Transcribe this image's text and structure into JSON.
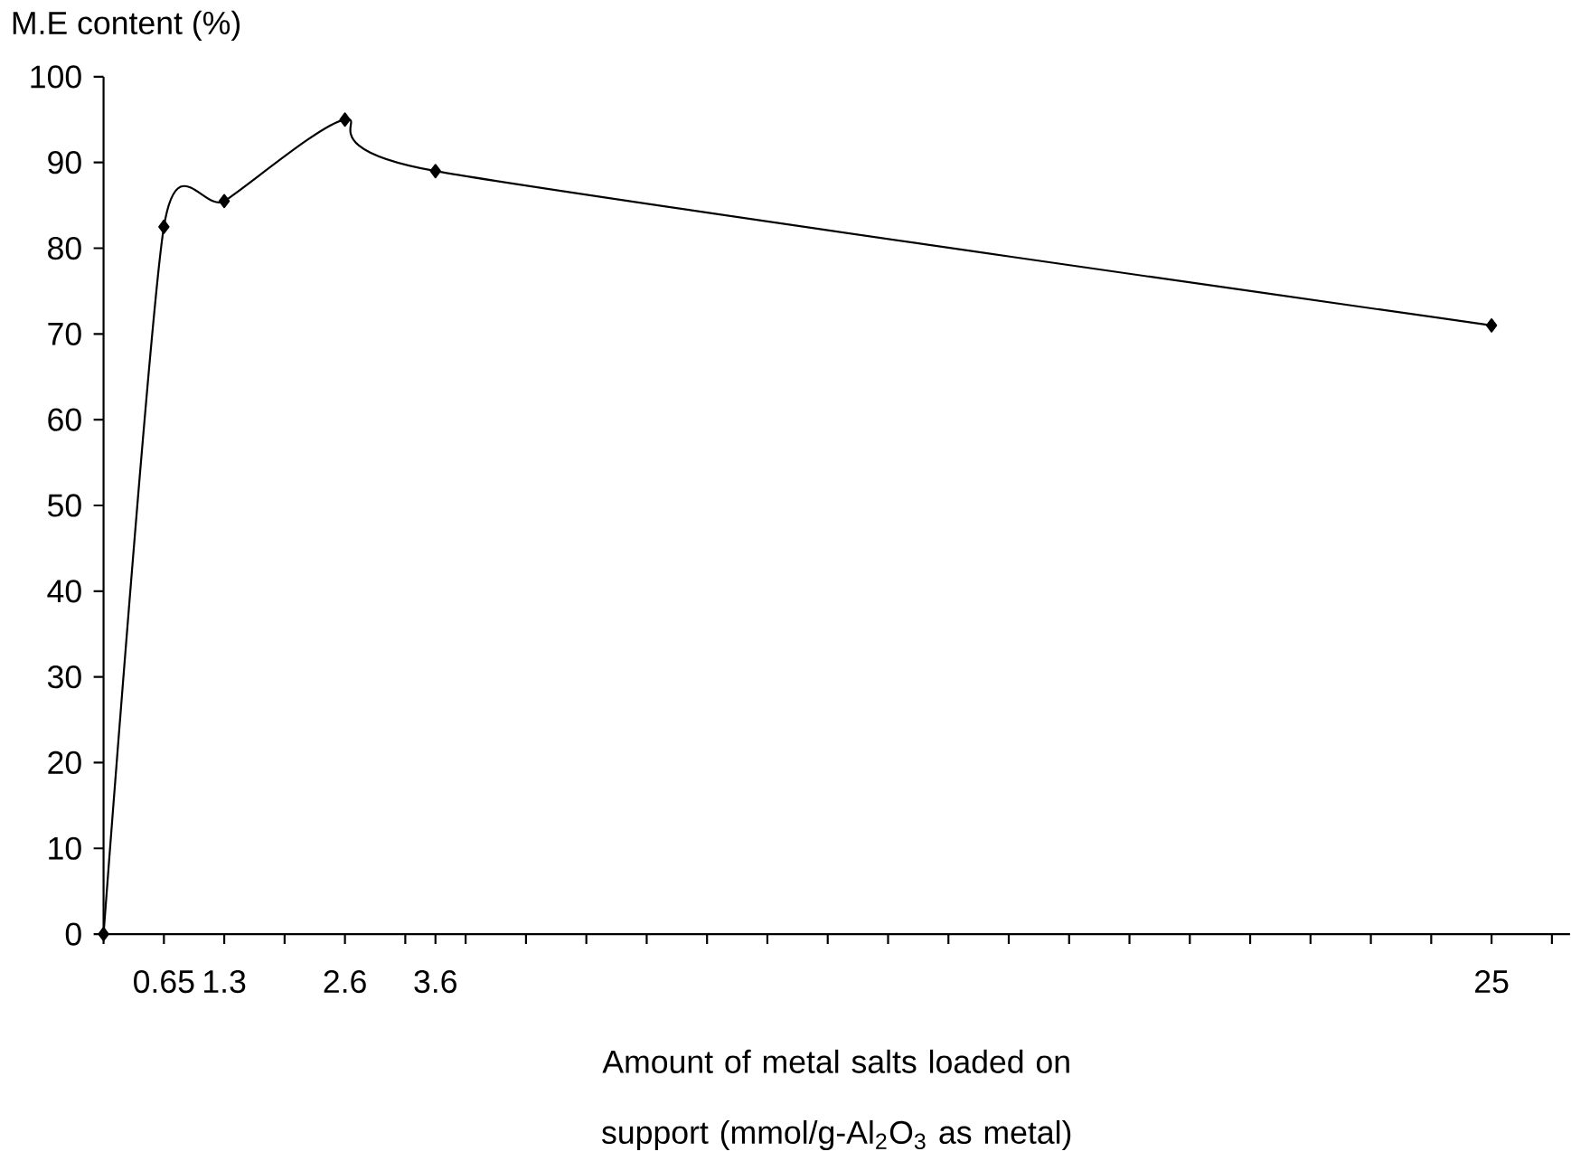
{
  "chart_data": {
    "type": "line",
    "xlabel": "Amount of metal salts loaded on support (mmol/g-Al$_{2}$O$_{3}$ as metal)",
    "ylabel": "M.E content (%)",
    "categories": [
      null,
      null,
      "0.65",
      null,
      "1.3",
      null,
      null,
      null,
      "2.6",
      null,
      null,
      "3.6",
      null,
      null,
      null,
      null,
      null,
      null,
      null,
      null,
      null,
      null,
      null,
      null,
      null,
      null,
      null,
      null,
      null,
      null,
      null,
      null,
      null,
      null,
      null,
      null,
      null,
      null,
      null,
      null,
      null,
      null,
      null,
      null,
      null,
      null,
      "25",
      null,
      null
    ],
    "series": [
      {
        "color": "#000000",
        "values": [
          0,
          null,
          82.5,
          null,
          85.5,
          null,
          null,
          null,
          95,
          null,
          null,
          89,
          null,
          null,
          null,
          null,
          null,
          null,
          null,
          null,
          null,
          null,
          null,
          null,
          null,
          null,
          null,
          null,
          null,
          null,
          null,
          null,
          null,
          null,
          null,
          null,
          null,
          null,
          null,
          null,
          null,
          null,
          null,
          null,
          null,
          null,
          71,
          null,
          null
        ]
      }
    ],
    "ylim": [
      0,
      100
    ],
    "yticks": [
      0,
      10,
      20,
      30,
      40,
      50,
      60,
      70,
      80,
      90,
      100
    ],
    "grid": false,
    "marker": "diamond",
    "line_style": "solid"
  }
}
